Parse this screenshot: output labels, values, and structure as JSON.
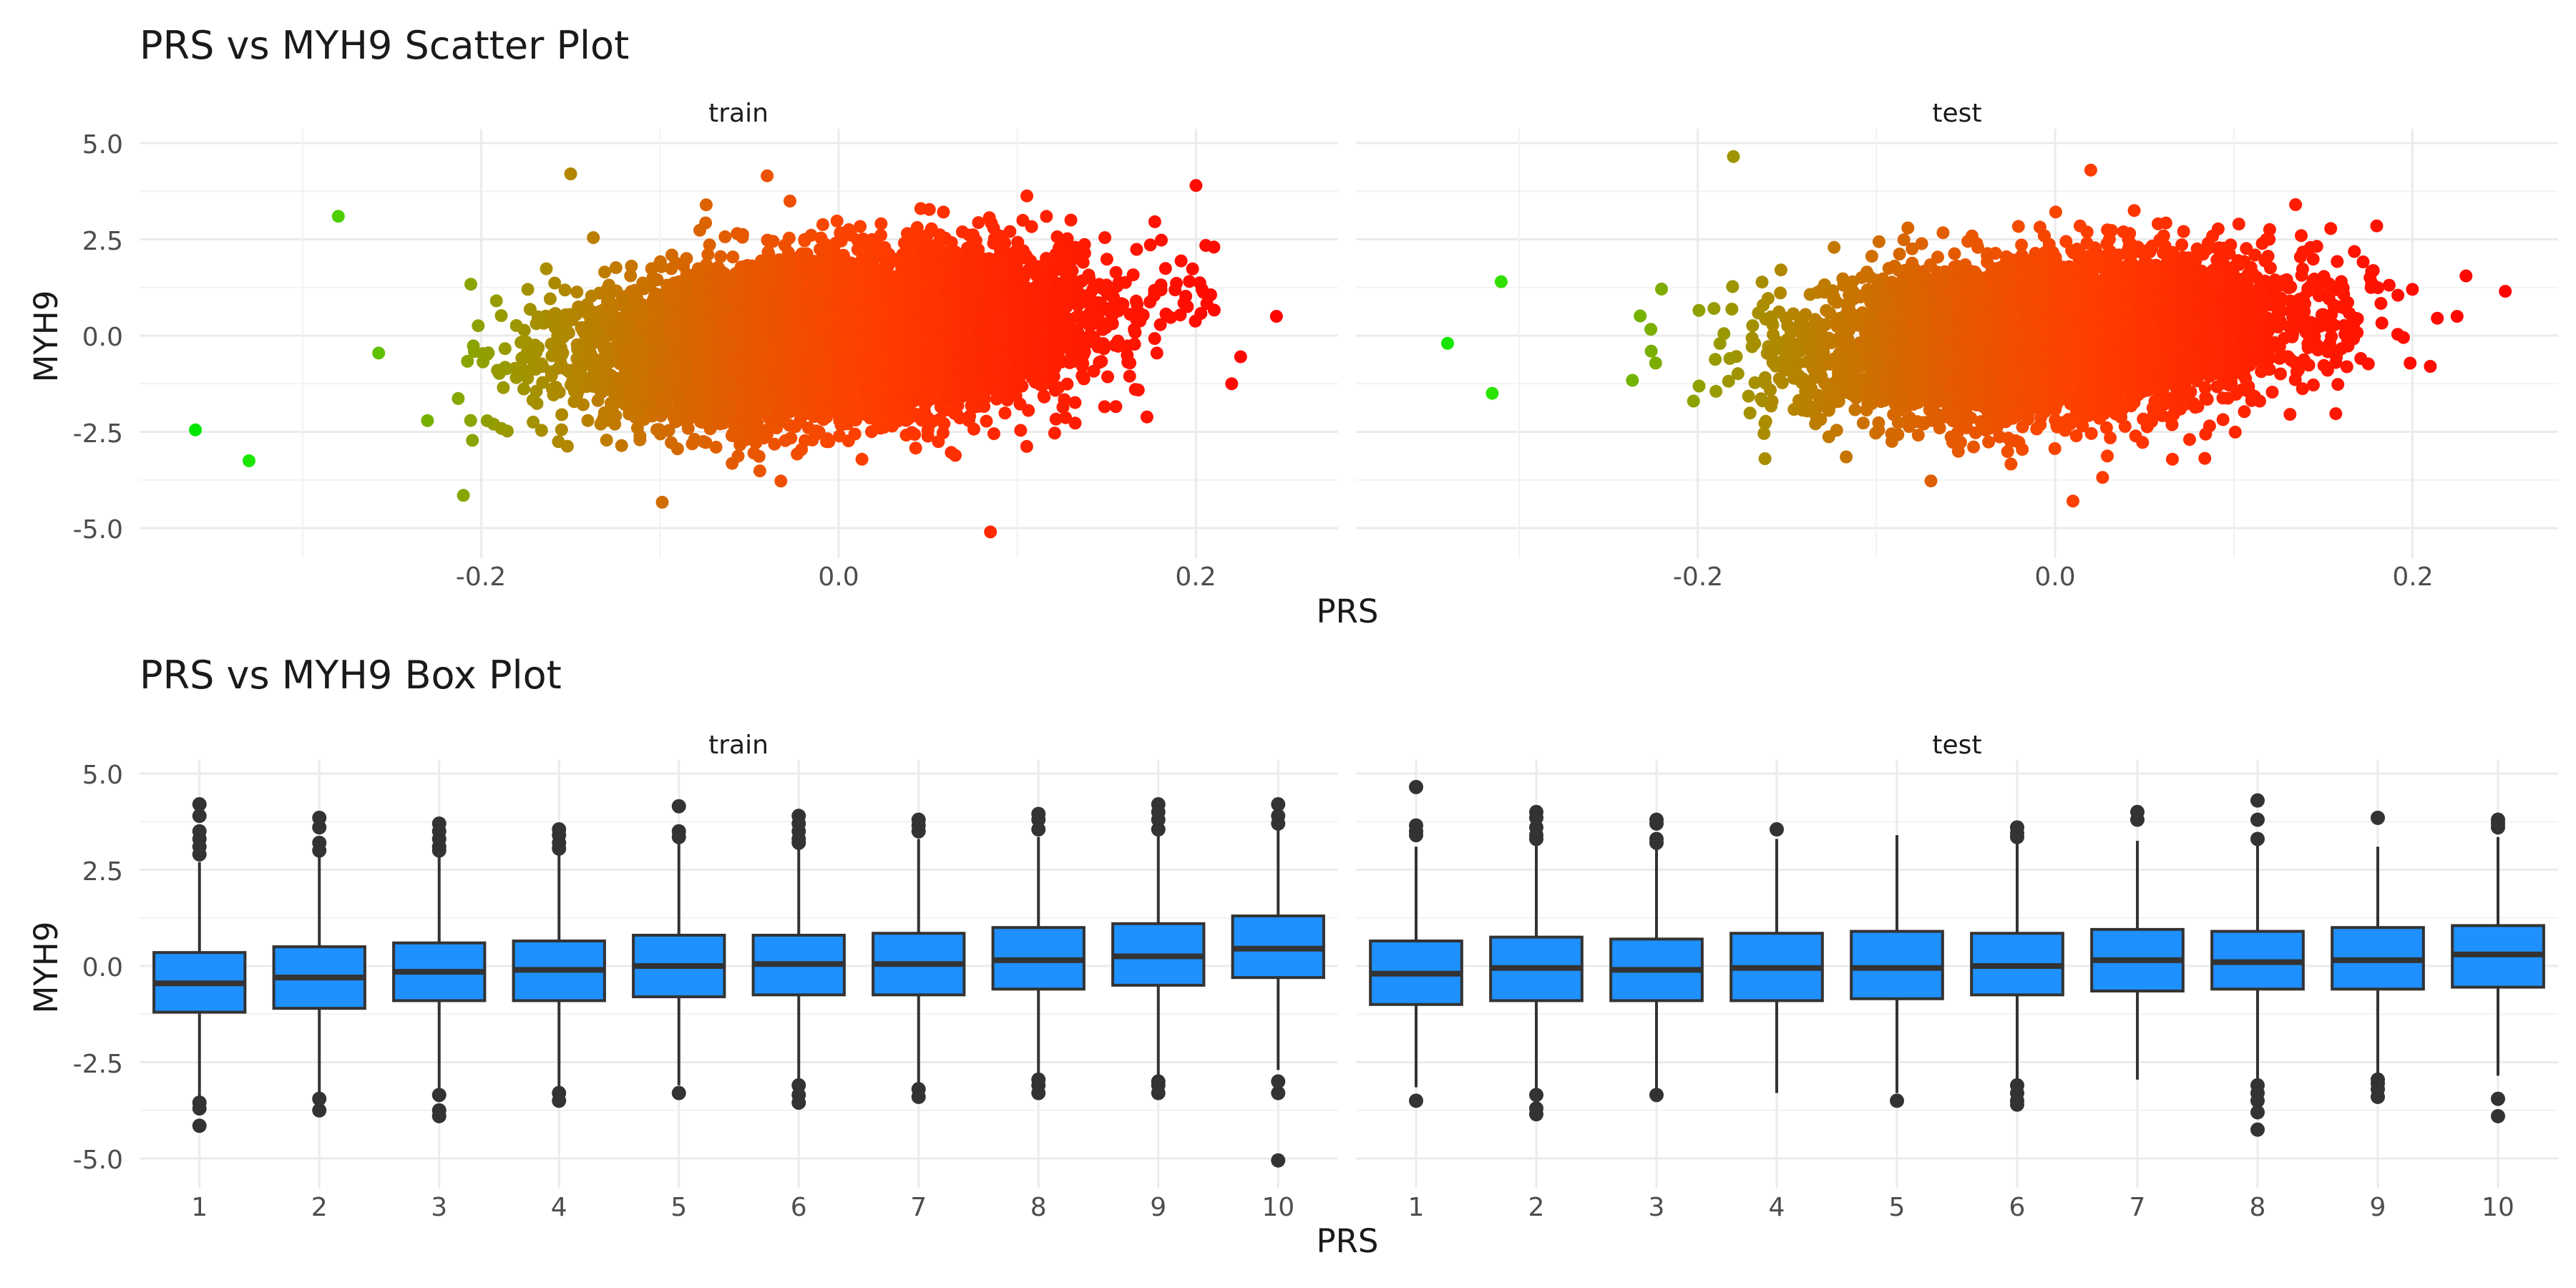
{
  "colors": {
    "low": "#00ff00",
    "high": "#ff0000",
    "box_fill": "#1e90ff",
    "box_line": "#333333",
    "outlier": "#333333"
  },
  "chart_data": [
    {
      "type": "scatter",
      "title": "PRS vs MYH9 Scatter Plot",
      "xlabel": "PRS",
      "ylabel": "MYH9",
      "panels": [
        "train",
        "test"
      ],
      "x_ticks": [
        "-0.2",
        "0.0",
        "0.2"
      ],
      "y_ticks": [
        "5.0",
        "2.5",
        "0.0",
        "-2.5",
        "-5.0"
      ],
      "xlim": [
        -0.39,
        0.28
      ],
      "ylim": [
        -5.5,
        5.4
      ],
      "color_by": "PRS",
      "train": {
        "prs_mean": 0.0,
        "prs_sd": 0.075,
        "myh9_mean": 0.0,
        "myh9_sd": 1.0,
        "slope": 3.5,
        "n": 9000,
        "extremes": [
          [
            -0.36,
            -2.45
          ],
          [
            -0.33,
            -3.25
          ],
          [
            -0.28,
            3.1
          ],
          [
            -0.15,
            4.2
          ],
          [
            -0.21,
            -4.15
          ],
          [
            -0.04,
            4.15
          ],
          [
            0.085,
            -5.1
          ],
          [
            0.2,
            3.9
          ],
          [
            0.21,
            2.3
          ],
          [
            0.245,
            0.5
          ],
          [
            0.225,
            -0.55
          ],
          [
            0.22,
            -1.25
          ],
          [
            0.13,
            3.0
          ]
        ]
      },
      "test": {
        "prs_mean": 0.0,
        "prs_sd": 0.075,
        "myh9_mean": 0.0,
        "myh9_sd": 1.0,
        "slope": 3.5,
        "n": 6000,
        "extremes": [
          [
            -0.34,
            -0.2
          ],
          [
            -0.31,
            1.4
          ],
          [
            -0.315,
            -1.5
          ],
          [
            -0.18,
            4.65
          ],
          [
            0.01,
            -4.3
          ],
          [
            0.02,
            4.3
          ],
          [
            0.2,
            1.2
          ],
          [
            0.23,
            1.55
          ],
          [
            0.252,
            1.15
          ],
          [
            0.225,
            0.5
          ],
          [
            0.21,
            -0.8
          ],
          [
            0.195,
            -0.05
          ],
          [
            0.18,
            2.85
          ]
        ]
      }
    },
    {
      "type": "box",
      "title": "PRS vs MYH9 Box Plot",
      "xlabel": "PRS",
      "ylabel": "MYH9",
      "panels": [
        "train",
        "test"
      ],
      "categories": [
        "1",
        "2",
        "3",
        "4",
        "5",
        "6",
        "7",
        "8",
        "9",
        "10"
      ],
      "y_ticks": [
        "5.0",
        "2.5",
        "0.0",
        "-2.5",
        "-5.0"
      ],
      "ylim": [
        -5.5,
        5.4
      ],
      "train": [
        {
          "q1": -1.2,
          "median": -0.45,
          "q3": 0.35,
          "lo": -3.45,
          "hi": 2.7,
          "out": [
            4.2,
            3.9,
            3.5,
            3.3,
            3.1,
            2.9,
            -3.55,
            -3.7,
            -4.15
          ]
        },
        {
          "q1": -1.1,
          "median": -0.3,
          "q3": 0.5,
          "lo": -3.3,
          "hi": 2.9,
          "out": [
            3.85,
            3.6,
            3.2,
            3.0,
            -3.45,
            -3.75
          ]
        },
        {
          "q1": -0.9,
          "median": -0.15,
          "q3": 0.6,
          "lo": -3.2,
          "hi": 2.9,
          "out": [
            3.7,
            3.5,
            3.3,
            3.1,
            3.0,
            -3.35,
            -3.75,
            -3.9
          ]
        },
        {
          "q1": -0.9,
          "median": -0.1,
          "q3": 0.65,
          "lo": -3.2,
          "hi": 2.95,
          "out": [
            3.55,
            3.4,
            3.2,
            3.05,
            -3.3,
            -3.5
          ]
        },
        {
          "q1": -0.8,
          "median": 0.0,
          "q3": 0.8,
          "lo": -3.1,
          "hi": 3.2,
          "out": [
            4.15,
            3.5,
            3.35,
            -3.3
          ]
        },
        {
          "q1": -0.75,
          "median": 0.05,
          "q3": 0.8,
          "lo": -3.0,
          "hi": 3.1,
          "out": [
            3.9,
            3.7,
            3.5,
            3.3,
            3.2,
            -3.1,
            -3.35,
            -3.55
          ]
        },
        {
          "q1": -0.75,
          "median": 0.05,
          "q3": 0.85,
          "lo": -3.1,
          "hi": 3.3,
          "out": [
            3.8,
            3.65,
            3.5,
            -3.2,
            -3.4
          ]
        },
        {
          "q1": -0.6,
          "median": 0.15,
          "q3": 1.0,
          "lo": -2.85,
          "hi": 3.35,
          "out": [
            3.95,
            3.8,
            3.55,
            -2.95,
            -3.1,
            -3.3
          ]
        },
        {
          "q1": -0.5,
          "median": 0.25,
          "q3": 1.1,
          "lo": -2.9,
          "hi": 3.4,
          "out": [
            4.2,
            4.0,
            3.8,
            3.55,
            -3.0,
            -3.1,
            -3.3
          ]
        },
        {
          "q1": -0.3,
          "median": 0.45,
          "q3": 1.3,
          "lo": -2.7,
          "hi": 3.55,
          "out": [
            4.2,
            3.9,
            3.7,
            -3.0,
            -3.3,
            -5.05
          ]
        }
      ],
      "test": [
        {
          "q1": -1.0,
          "median": -0.2,
          "q3": 0.65,
          "lo": -3.15,
          "hi": 3.1,
          "out": [
            4.65,
            3.65,
            3.5,
            3.4,
            -3.5
          ]
        },
        {
          "q1": -0.9,
          "median": -0.05,
          "q3": 0.75,
          "lo": -3.2,
          "hi": 3.2,
          "out": [
            4.0,
            3.85,
            3.6,
            3.4,
            3.3,
            -3.35,
            -3.7,
            -3.85
          ]
        },
        {
          "q1": -0.9,
          "median": -0.1,
          "q3": 0.7,
          "lo": -3.2,
          "hi": 3.1,
          "out": [
            3.8,
            3.7,
            3.3,
            3.2,
            -3.35
          ]
        },
        {
          "q1": -0.9,
          "median": -0.05,
          "q3": 0.85,
          "lo": -3.3,
          "hi": 3.3,
          "out": [
            3.55
          ]
        },
        {
          "q1": -0.85,
          "median": -0.05,
          "q3": 0.9,
          "lo": -3.3,
          "hi": 3.4,
          "out": [
            -3.5
          ]
        },
        {
          "q1": -0.75,
          "median": 0.0,
          "q3": 0.85,
          "lo": -3.0,
          "hi": 3.25,
          "out": [
            3.6,
            3.45,
            3.35,
            -3.1,
            -3.3,
            -3.5,
            -3.6
          ]
        },
        {
          "q1": -0.65,
          "median": 0.15,
          "q3": 0.95,
          "lo": -2.95,
          "hi": 3.25,
          "out": [
            4.0,
            3.8
          ]
        },
        {
          "q1": -0.6,
          "median": 0.1,
          "q3": 0.9,
          "lo": -3.0,
          "hi": 3.2,
          "out": [
            4.3,
            3.8,
            3.3,
            -3.1,
            -3.3,
            -3.5,
            -3.8,
            -4.25
          ]
        },
        {
          "q1": -0.6,
          "median": 0.15,
          "q3": 1.0,
          "lo": -2.8,
          "hi": 3.1,
          "out": [
            3.85,
            -2.95,
            -3.05,
            -3.2,
            -3.4
          ]
        },
        {
          "q1": -0.55,
          "median": 0.3,
          "q3": 1.05,
          "lo": -2.85,
          "hi": 3.35,
          "out": [
            3.8,
            3.7,
            3.6,
            -3.45,
            -3.9
          ]
        }
      ]
    }
  ]
}
